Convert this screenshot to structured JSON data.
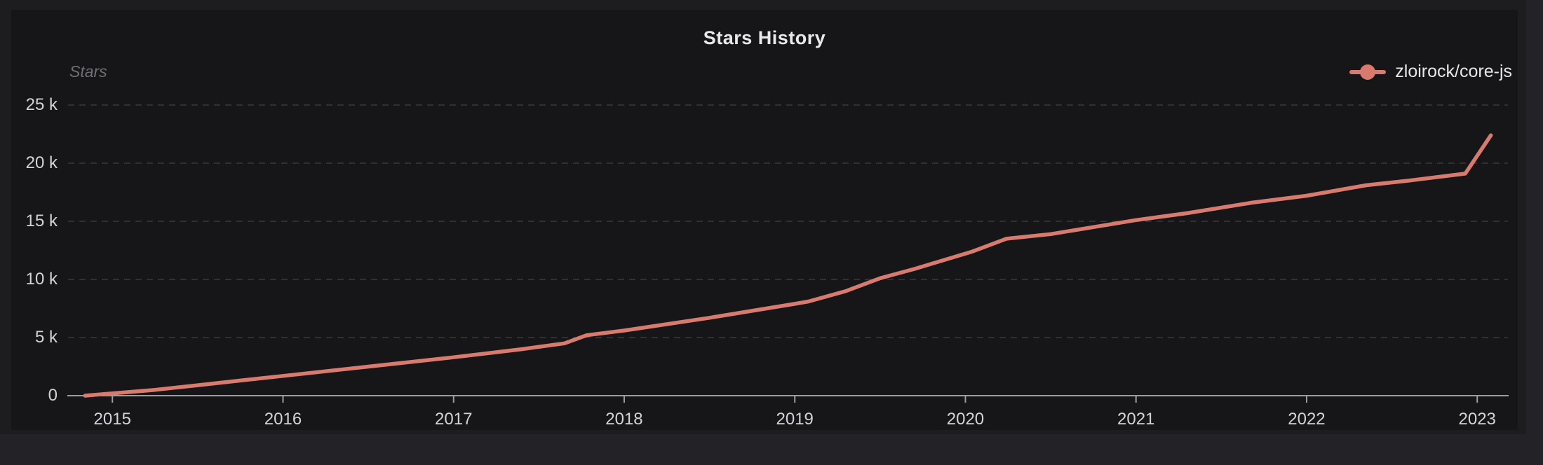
{
  "page": {
    "title": "Stars History"
  },
  "legend": {
    "position": "top-right",
    "label": "zloirock/core-js"
  },
  "chart_data": {
    "type": "line",
    "title": "Stars History",
    "y_axis_name": "Stars",
    "x_tick_labels": [
      "2015",
      "2016",
      "2017",
      "2018",
      "2019",
      "2020",
      "2021",
      "2022",
      "2023"
    ],
    "y_tick_values": [
      0,
      5000,
      10000,
      15000,
      20000,
      25000
    ],
    "y_tick_labels": [
      "0",
      "5 k",
      "10 k",
      "15 k",
      "20 k",
      "25 k"
    ],
    "xlim": [
      2014.74,
      2023.18
    ],
    "ylim": [
      0,
      25000
    ],
    "grid": "horizontal dashed gridlines, no vertical gridlines",
    "legend_position": "top-right",
    "series": [
      {
        "name": "zloirock/core-js",
        "color": "#d87a6e",
        "points": [
          [
            2014.84,
            0
          ],
          [
            2015.0,
            200
          ],
          [
            2015.25,
            500
          ],
          [
            2015.5,
            900
          ],
          [
            2015.75,
            1300
          ],
          [
            2016.0,
            1700
          ],
          [
            2016.5,
            2500
          ],
          [
            2017.0,
            3300
          ],
          [
            2017.4,
            4000
          ],
          [
            2017.65,
            4500
          ],
          [
            2017.78,
            5200
          ],
          [
            2018.0,
            5600
          ],
          [
            2018.5,
            6700
          ],
          [
            2019.0,
            7900
          ],
          [
            2019.08,
            8100
          ],
          [
            2019.3,
            9000
          ],
          [
            2019.5,
            10100
          ],
          [
            2019.7,
            10900
          ],
          [
            2020.04,
            12400
          ],
          [
            2020.24,
            13500
          ],
          [
            2020.5,
            13900
          ],
          [
            2020.75,
            14500
          ],
          [
            2021.0,
            15100
          ],
          [
            2021.3,
            15700
          ],
          [
            2021.68,
            16600
          ],
          [
            2022.0,
            17200
          ],
          [
            2022.35,
            18100
          ],
          [
            2022.6,
            18500
          ],
          [
            2022.93,
            19100
          ],
          [
            2023.08,
            22400
          ]
        ]
      }
    ]
  },
  "colors": {
    "page_background": "#232327",
    "panel_background": "#1d1d20",
    "canvas_background": "#161619",
    "series_line": "#d87a6e",
    "axis_line": "#9c9ca3",
    "gridline": "#39393d",
    "tick_label": "#d3d3d7",
    "title_text": "#e9e9ec",
    "axis_name_text": "#6f6f75"
  }
}
